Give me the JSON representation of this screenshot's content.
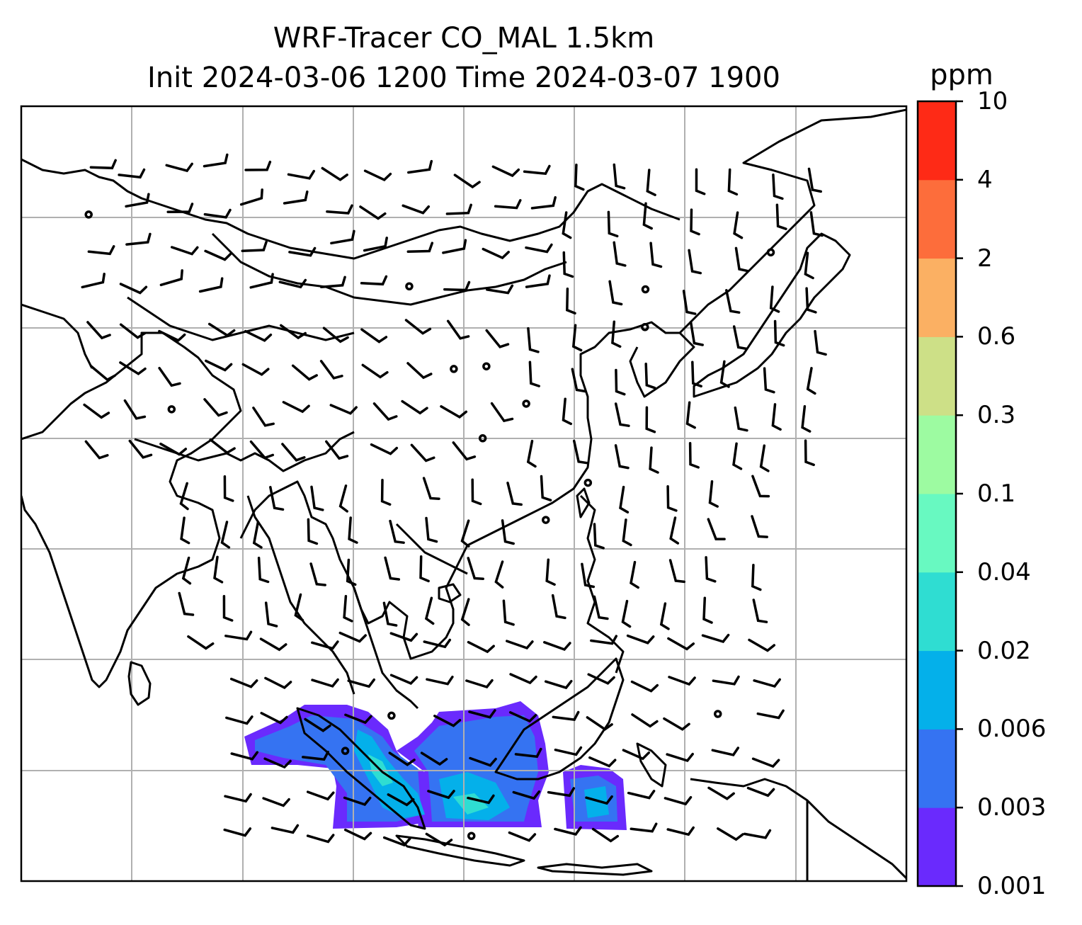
{
  "title_line1": "WRF-Tracer CO_MAL 1.5km",
  "title_line2": "Init 2024-03-06 1200 Time 2024-03-07 1900",
  "colorbar": {
    "unit": "ppm",
    "tick_labels": [
      "0.001",
      "0.003",
      "0.006",
      "0.02",
      "0.04",
      "0.1",
      "0.3",
      "0.6",
      "2",
      "4",
      "10"
    ],
    "colors": [
      "#6a2afd",
      "#3573f2",
      "#04b0ea",
      "#2fddd2",
      "#68f9c1",
      "#9dfba1",
      "#cde087",
      "#fbb063",
      "#fd6d3b",
      "#fe2a16"
    ]
  },
  "map": {
    "gridlines": true,
    "features": [
      "coastlines",
      "country-borders",
      "wind-barbs",
      "co-tracer-plume"
    ],
    "plume_location": "southern-sumatra-java-sea-borneo"
  }
}
